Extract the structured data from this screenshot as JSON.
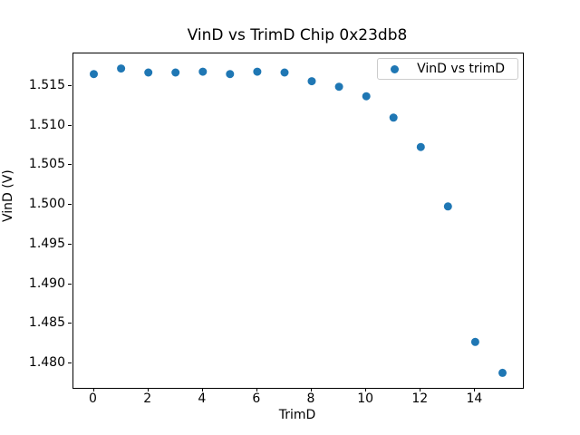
{
  "chart_data": {
    "type": "scatter",
    "title": "VinD vs TrimD Chip 0x23db8",
    "xlabel": "TrimD",
    "ylabel": "VinD (V)",
    "grid": false,
    "legend_position": "upper right",
    "legend": [
      {
        "label": "VinD vs trimD",
        "marker": "circle",
        "marker_color": "#1f77b4"
      }
    ],
    "series": [
      {
        "name": "VinD vs trimD",
        "marker": "circle",
        "color": "#1f77b4",
        "x": [
          0,
          1,
          2,
          3,
          4,
          5,
          6,
          7,
          8,
          9,
          10,
          11,
          12,
          13,
          14,
          15
        ],
        "y": [
          1.5165,
          1.5172,
          1.5167,
          1.5167,
          1.5168,
          1.5165,
          1.5168,
          1.5167,
          1.5156,
          1.5149,
          1.5137,
          1.511,
          1.5073,
          1.4998,
          1.4827,
          1.4788
        ]
      }
    ],
    "xlim": [
      -0.75,
      15.75
    ],
    "ylim": [
      1.4769,
      1.5191
    ],
    "xticks": [
      0,
      2,
      4,
      6,
      8,
      10,
      12,
      14
    ],
    "yticks": [
      1.48,
      1.485,
      1.49,
      1.495,
      1.5,
      1.505,
      1.51,
      1.515
    ],
    "ytick_decimals": 3,
    "colors": {
      "marker": "#1f77b4",
      "axes": "#000000",
      "text": "#000000",
      "legend_border": "#cccccc",
      "background": "#ffffff"
    }
  }
}
